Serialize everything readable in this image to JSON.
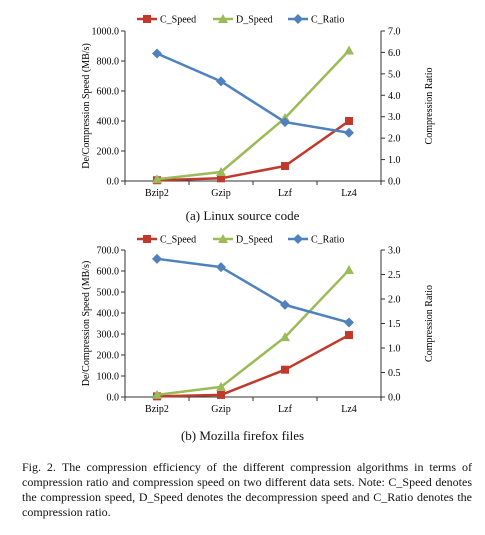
{
  "colors": {
    "C_Speed": "#C0392B",
    "D_Speed": "#9BBB59",
    "C_Ratio": "#4F81BD"
  },
  "chart_data": [
    {
      "type": "line",
      "categories": [
        "Bzip2",
        "Gzip",
        "Lzf",
        "Lz4"
      ],
      "series": [
        {
          "name": "C_Speed",
          "axis": "left",
          "values": [
            5,
            18,
            100,
            400
          ]
        },
        {
          "name": "D_Speed",
          "axis": "left",
          "values": [
            12,
            60,
            420,
            870
          ]
        },
        {
          "name": "C_Ratio",
          "axis": "right",
          "values": [
            5.95,
            4.65,
            2.75,
            2.25
          ]
        }
      ],
      "ylabel": "De/Compression Speed (MB/s)",
      "ylabel_right": "Compression Ratio",
      "ylim": [
        0,
        1000
      ],
      "ylim_right": [
        0,
        7
      ],
      "yticks": [
        "0.0",
        "200.0",
        "400.0",
        "600.0",
        "800.0",
        "1000.0"
      ],
      "yticks_right": [
        "0.0",
        "1.0",
        "2.0",
        "3.0",
        "4.0",
        "5.0",
        "6.0",
        "7.0"
      ],
      "legend_position": "top",
      "caption": "(a) Linux source code"
    },
    {
      "type": "line",
      "categories": [
        "Bzip2",
        "Gzip",
        "Lzf",
        "Lz4"
      ],
      "series": [
        {
          "name": "C_Speed",
          "axis": "left",
          "values": [
            3,
            10,
            130,
            295
          ]
        },
        {
          "name": "D_Speed",
          "axis": "left",
          "values": [
            10,
            48,
            285,
            605
          ]
        },
        {
          "name": "C_Ratio",
          "axis": "right",
          "values": [
            2.82,
            2.65,
            1.88,
            1.52
          ]
        }
      ],
      "ylabel": "De/Compression Speed (MB/s)",
      "ylabel_right": "Compression Ratio",
      "ylim": [
        0,
        700
      ],
      "ylim_right": [
        0,
        3
      ],
      "yticks": [
        "0.0",
        "100.0",
        "200.0",
        "300.0",
        "400.0",
        "500.0",
        "600.0",
        "700.0"
      ],
      "yticks_right": [
        "0.0",
        "0.5",
        "1.0",
        "1.5",
        "2.0",
        "2.5",
        "3.0"
      ],
      "legend_position": "top",
      "caption": "(b) Mozilla firefox files"
    }
  ],
  "figure_caption": {
    "label": "Fig. 2.",
    "text": "The compression efficiency of the different compression algorithms in terms of compression ratio and compression speed on two different data sets. Note: C_Speed denotes the compression speed, D_Speed denotes the decompression speed and C_Ratio denotes the compression ratio."
  }
}
